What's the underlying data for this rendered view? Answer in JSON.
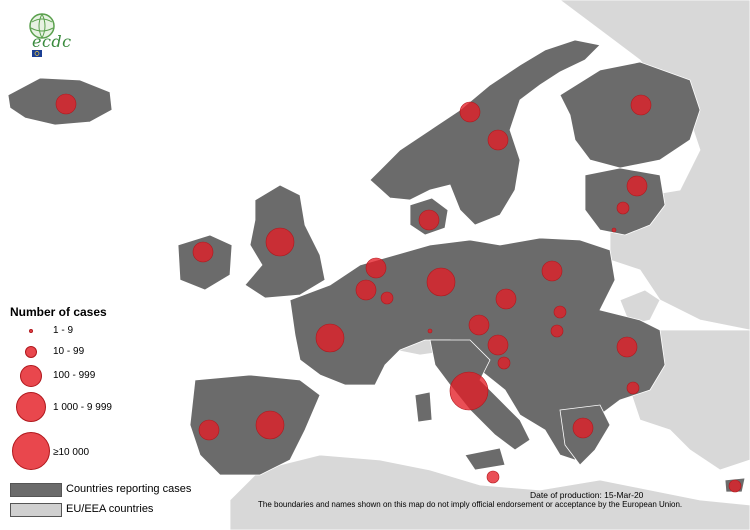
{
  "logo": {
    "text": "ecdc"
  },
  "legend": {
    "title": "Number of cases",
    "categories": [
      {
        "label": "1 - 9",
        "icon": "tiny-red-circle"
      },
      {
        "label": "10 - 99",
        "icon": "small-red-circle"
      },
      {
        "label": "100 - 999",
        "icon": "medium-red-circle"
      },
      {
        "label": "1 000 - 9 999",
        "icon": "large-red-circle"
      },
      {
        "label": "≥10 000",
        "icon": "largest-red-circle"
      }
    ],
    "area_keys": [
      {
        "label": "Countries reporting cases",
        "color": "#6b6b6b"
      },
      {
        "label": "EU/EEA countries",
        "color": "#d0d0d0"
      }
    ]
  },
  "footer": {
    "date": "Date of production: 15-Mar-20",
    "disclaimer": "The boundaries and names shown on this map do not imply official endorsement or acceptance by the European Union."
  },
  "colors": {
    "reporting": "#6b6b6b",
    "eu_eea": "#d0d0d0",
    "bubble": "#e41e26",
    "sea": "#ffffff"
  }
}
